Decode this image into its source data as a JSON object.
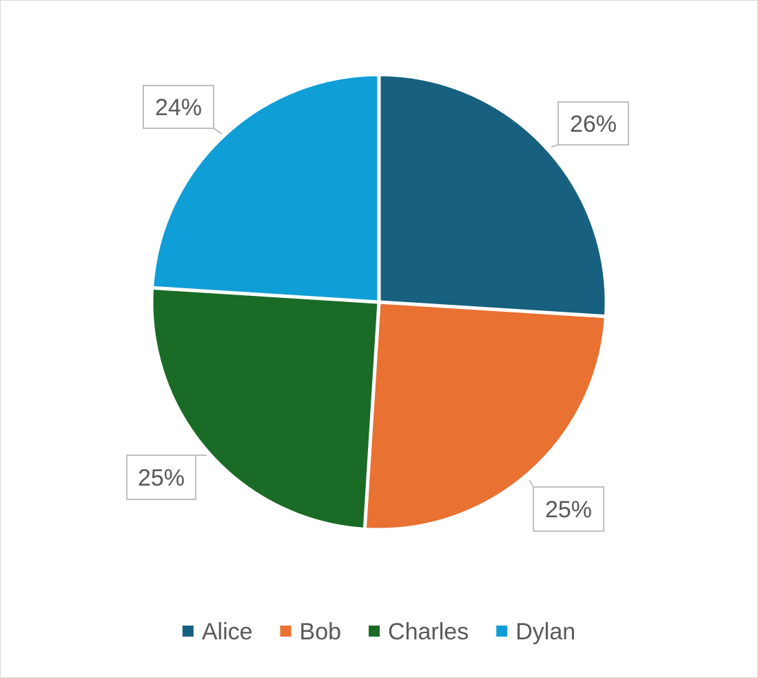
{
  "chart_data": {
    "type": "pie",
    "categories": [
      "Alice",
      "Bob",
      "Charles",
      "Dylan"
    ],
    "values": [
      26,
      25,
      25,
      24
    ],
    "data_labels": [
      "26%",
      "25%",
      "25%",
      "24%"
    ],
    "colors": [
      "#17607f",
      "#e97132",
      "#1a6b26",
      "#109ed7"
    ],
    "start_angle_deg": 0,
    "direction": "clockwise",
    "legend_position": "bottom",
    "title": ""
  }
}
